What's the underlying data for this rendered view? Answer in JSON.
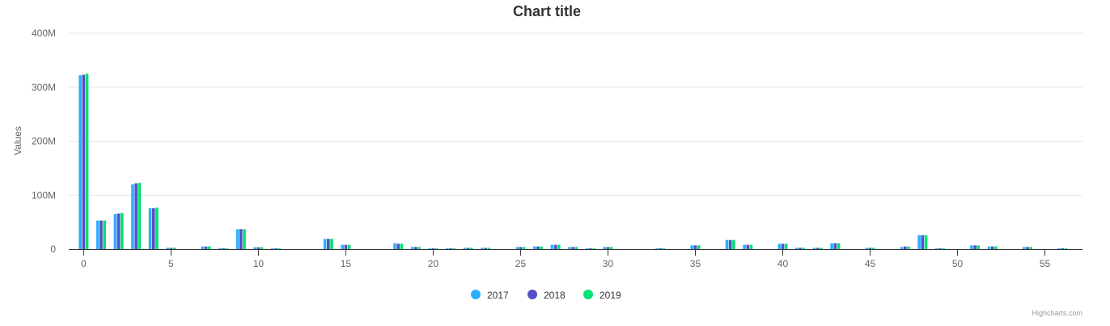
{
  "chart_data": {
    "type": "bar",
    "title": "Chart title",
    "ylabel": "Values",
    "xlabel": "",
    "ylim": [
      0,
      400000000
    ],
    "y_ticks": [
      {
        "value": 0,
        "label": "0"
      },
      {
        "value": 100000000,
        "label": "100M"
      },
      {
        "value": 200000000,
        "label": "200M"
      },
      {
        "value": 300000000,
        "label": "300M"
      },
      {
        "value": 400000000,
        "label": "400M"
      }
    ],
    "x_ticks": [
      0,
      5,
      10,
      15,
      20,
      25,
      30,
      35,
      40,
      45,
      50,
      55
    ],
    "x": [
      0,
      1,
      2,
      3,
      4,
      5,
      6,
      7,
      8,
      9,
      10,
      11,
      12,
      13,
      14,
      15,
      16,
      17,
      18,
      19,
      20,
      21,
      22,
      23,
      24,
      25,
      26,
      27,
      28,
      29,
      30,
      31,
      32,
      33,
      34,
      35,
      36,
      37,
      38,
      39,
      40,
      41,
      42,
      43,
      44,
      45,
      46,
      47,
      48,
      49,
      50,
      51,
      52,
      53,
      54,
      55,
      56
    ],
    "grid": true,
    "legend_position": "bottom-center",
    "series": [
      {
        "name": "2017",
        "color": "#2caffe",
        "values": [
          322000000,
          53000000,
          65000000,
          120000000,
          76000000,
          2500000,
          0,
          5000000,
          1000000,
          37000000,
          3500000,
          1500000,
          0,
          0,
          19000000,
          8000000,
          0,
          0,
          11000000,
          4000000,
          1500000,
          1500000,
          2500000,
          2500000,
          0,
          4000000,
          5000000,
          8000000,
          4000000,
          1500000,
          4000000,
          0,
          0,
          1500000,
          0,
          7000000,
          0,
          17000000,
          8000000,
          0,
          10000000,
          2500000,
          2500000,
          11000000,
          0,
          2500000,
          0,
          4000000,
          26000000,
          1500000,
          0,
          7000000,
          5000000,
          0,
          4000000,
          0,
          1500000
        ]
      },
      {
        "name": "2018",
        "color": "#544fc5",
        "values": [
          323000000,
          53000000,
          66000000,
          122000000,
          76000000,
          2500000,
          0,
          5000000,
          1000000,
          37000000,
          3500000,
          1500000,
          0,
          0,
          19000000,
          8000000,
          0,
          0,
          10000000,
          4000000,
          1500000,
          1500000,
          2500000,
          2500000,
          0,
          4000000,
          5000000,
          8000000,
          4000000,
          1500000,
          4000000,
          0,
          0,
          1500000,
          0,
          7000000,
          0,
          17000000,
          8000000,
          0,
          10000000,
          2500000,
          2500000,
          11000000,
          0,
          2500000,
          0,
          5000000,
          26000000,
          1500000,
          0,
          7000000,
          5000000,
          0,
          4000000,
          0,
          1500000
        ]
      },
      {
        "name": "2019",
        "color": "#00e272",
        "values": [
          325000000,
          53000000,
          67000000,
          123000000,
          77000000,
          2500000,
          0,
          5000000,
          1000000,
          37000000,
          3500000,
          1500000,
          0,
          0,
          19000000,
          8000000,
          0,
          0,
          10000000,
          4000000,
          1500000,
          1500000,
          2500000,
          2500000,
          0,
          4000000,
          5000000,
          8000000,
          4000000,
          1500000,
          4000000,
          0,
          0,
          1500000,
          0,
          7000000,
          0,
          17000000,
          8000000,
          0,
          10000000,
          2500000,
          2500000,
          11000000,
          0,
          2500000,
          0,
          5000000,
          26000000,
          1500000,
          0,
          7000000,
          5000000,
          0,
          4000000,
          0,
          1500000
        ]
      }
    ]
  },
  "credits": "Highcharts.com"
}
